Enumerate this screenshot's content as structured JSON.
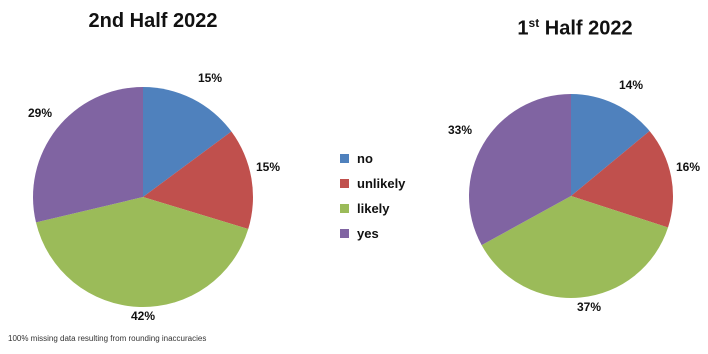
{
  "chart_data": [
    {
      "type": "pie",
      "title": "2nd Half 2022",
      "categories": [
        "no",
        "unlikely",
        "likely",
        "yes"
      ],
      "values": [
        15,
        15,
        42,
        29
      ],
      "data_labels": [
        "15%",
        "15%",
        "42%",
        "29%"
      ]
    },
    {
      "type": "pie",
      "title_main": "1",
      "title_sup": "st",
      "title_rest": " Half 2022",
      "categories": [
        "no",
        "unlikely",
        "likely",
        "yes"
      ],
      "values": [
        14,
        16,
        37,
        33
      ],
      "data_labels": [
        "14%",
        "16%",
        "37%",
        "33%"
      ]
    }
  ],
  "legend": {
    "placement": "center",
    "items": [
      {
        "label": "no",
        "color": "#4F81BD"
      },
      {
        "label": "unlikely",
        "color": "#C0504D"
      },
      {
        "label": "likely",
        "color": "#9BBB59"
      },
      {
        "label": "yes",
        "color": "#8064A2"
      }
    ]
  },
  "footnote": "100% missing data resulting from rounding inaccuracies"
}
